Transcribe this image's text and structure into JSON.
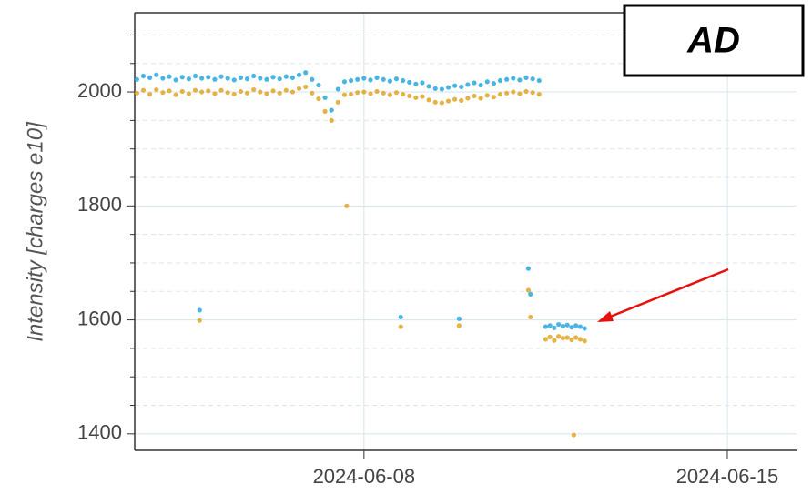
{
  "chart_data": {
    "type": "scatter",
    "label": "AD",
    "ylabel": "Intensity [charges e10]",
    "x": [
      "2024-06-03T15:00",
      "2024-06-03T18:00",
      "2024-06-03T21:00",
      "2024-06-04T00:00",
      "2024-06-04T03:00",
      "2024-06-04T06:00",
      "2024-06-04T09:00",
      "2024-06-04T12:00",
      "2024-06-04T15:00",
      "2024-06-04T18:00",
      "2024-06-04T20:00",
      "2024-06-04T21:00",
      "2024-06-05T00:00",
      "2024-06-05T03:00",
      "2024-06-05T06:00",
      "2024-06-05T09:00",
      "2024-06-05T12:00",
      "2024-06-05T15:00",
      "2024-06-05T18:00",
      "2024-06-05T21:00",
      "2024-06-06T00:00",
      "2024-06-06T03:00",
      "2024-06-06T06:00",
      "2024-06-06T09:00",
      "2024-06-06T12:00",
      "2024-06-06T15:00",
      "2024-06-06T18:00",
      "2024-06-06T21:00",
      "2024-06-07T00:00",
      "2024-06-07T03:00",
      "2024-06-07T06:00",
      "2024-06-07T09:00",
      "2024-06-07T12:00",
      "2024-06-07T15:00",
      "2024-06-07T16:00",
      "2024-06-07T18:00",
      "2024-06-07T21:00",
      "2024-06-08T00:00",
      "2024-06-08T03:00",
      "2024-06-08T06:00",
      "2024-06-08T09:00",
      "2024-06-08T12:00",
      "2024-06-08T15:00",
      "2024-06-08T17:00",
      "2024-06-08T18:00",
      "2024-06-08T21:00",
      "2024-06-09T00:00",
      "2024-06-09T03:00",
      "2024-06-09T06:00",
      "2024-06-09T09:00",
      "2024-06-09T12:00",
      "2024-06-09T15:00",
      "2024-06-09T18:00",
      "2024-06-09T20:00",
      "2024-06-09T21:00",
      "2024-06-10T00:00",
      "2024-06-10T03:00",
      "2024-06-10T06:00",
      "2024-06-10T09:00",
      "2024-06-10T12:00",
      "2024-06-10T15:00",
      "2024-06-10T18:00",
      "2024-06-10T21:00",
      "2024-06-11T00:00",
      "2024-06-11T03:00",
      "2024-06-11T04:00",
      "2024-06-11T05:00",
      "2024-06-11T06:00",
      "2024-06-11T09:00",
      "2024-06-11T12:00",
      "2024-06-11T14:00",
      "2024-06-11T16:00",
      "2024-06-11T18:00",
      "2024-06-11T20:00",
      "2024-06-11T22:00",
      "2024-06-12T00:00",
      "2024-06-12T01:00",
      "2024-06-12T02:00",
      "2024-06-12T04:00",
      "2024-06-12T06:00"
    ],
    "series": [
      {
        "color": "#29a8e0",
        "values": [
          2022,
          2028,
          2025,
          2030,
          2024,
          2027,
          2021,
          2026,
          2023,
          2028,
          1617,
          2024,
          2026,
          2022,
          2027,
          2024,
          2021,
          2025,
          2023,
          2028,
          2024,
          2022,
          2026,
          2023,
          2027,
          2025,
          2030,
          2034,
          2022,
          2012,
          1990,
          1968,
          2005,
          2018,
          null,
          2020,
          2022,
          2024,
          2021,
          2025,
          2022,
          2019,
          2023,
          1605,
          2020,
          2017,
          2014,
          2016,
          2010,
          2006,
          2005,
          2008,
          2011,
          1602,
          2009,
          2013,
          2016,
          2012,
          2018,
          2015,
          2020,
          2022,
          2024,
          2021,
          2025,
          1690,
          1645,
          2023,
          2020,
          1588,
          1590,
          1586,
          1592,
          1589,
          1591,
          1587,
          null,
          1590,
          1588,
          1585
        ]
      },
      {
        "color": "#e0a526",
        "values": [
          1998,
          2003,
          1996,
          2004,
          1999,
          2002,
          1995,
          2001,
          1997,
          2003,
          1599,
          2000,
          2002,
          1997,
          2003,
          1999,
          1996,
          2001,
          1998,
          2004,
          2000,
          1997,
          2002,
          1998,
          2003,
          2000,
          2006,
          2009,
          1998,
          1988,
          1966,
          1950,
          1982,
          1995,
          1800,
          1996,
          1999,
          2000,
          1997,
          2001,
          1998,
          1995,
          1999,
          1588,
          1996,
          1993,
          1990,
          1992,
          1986,
          1982,
          1981,
          1984,
          1987,
          1590,
          1985,
          1989,
          1993,
          1989,
          1994,
          1991,
          1996,
          1998,
          2000,
          1997,
          2001,
          1652,
          1605,
          1999,
          1996,
          1566,
          1570,
          1564,
          1571,
          1568,
          1569,
          1565,
          1398,
          1569,
          1566,
          1563
        ]
      }
    ],
    "xlim": [
      "2024-06-03T14:00",
      "2024-06-16T08:00"
    ],
    "xticks": [
      "2024-06-08",
      "2024-06-15"
    ],
    "ylim": [
      1371,
      2139
    ],
    "yticks": [
      1400,
      1600,
      1800,
      2000
    ],
    "yminorticks": [
      1450,
      1500,
      1550,
      1650,
      1700,
      1750,
      1850,
      1900,
      1950,
      2050,
      2100
    ],
    "grid": true
  }
}
